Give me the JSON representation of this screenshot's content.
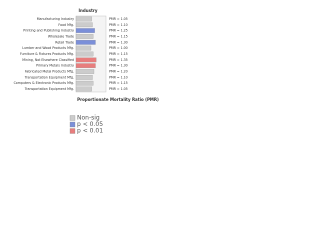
{
  "chart_data": {
    "type": "hbar",
    "title": "Industry",
    "x_label": "Proportionate Mortality Ratio (PMR)",
    "categories": [
      "Manufacturing Industry",
      "Food Mfg.",
      "Printing and Publishing Industry",
      "Wholesale Trade",
      "Retail Trade",
      "Lumber and Wood Products Mfg.",
      "Furniture & Fixtures Products Mfg.",
      "Mining, Not Elsewhere Classified",
      "Primary Metals Industry",
      "Fabricated Metal Products Mfg.",
      "Transportation Equipment Mfg.",
      "Computers & Electronic Products Mfg.",
      "Transportation Equipment Mfg."
    ],
    "values": [
      1.05,
      1.1,
      1.25,
      1.15,
      1.3,
      1.0,
      1.15,
      1.35,
      1.3,
      1.2,
      1.1,
      1.15,
      1.05
    ],
    "value_labels": [
      "PMR = 1.05",
      "PMR = 1.10",
      "PMR = 1.25",
      "PMR = 1.15",
      "PMR = 1.30",
      "PMR = 1.00",
      "PMR = 1.15",
      "PMR = 1.35",
      "PMR = 1.30",
      "PMR = 1.20",
      "PMR = 1.10",
      "PMR = 1.15",
      "PMR = 1.05"
    ],
    "colors": [
      "#cccccc",
      "#cccccc",
      "#7b8fd9",
      "#cccccc",
      "#7b8fd9",
      "#cccccc",
      "#cccccc",
      "#e87d7d",
      "#e87d7d",
      "#cccccc",
      "#cccccc",
      "#cccccc",
      "#cccccc"
    ],
    "xlim": [
      0,
      2
    ],
    "legend": [
      {
        "label": "Non-sig",
        "color": "#cccccc"
      },
      {
        "label": "p < 0.05",
        "color": "#7b8fd9"
      },
      {
        "label": "p < 0.01",
        "color": "#e87d7d"
      }
    ]
  }
}
